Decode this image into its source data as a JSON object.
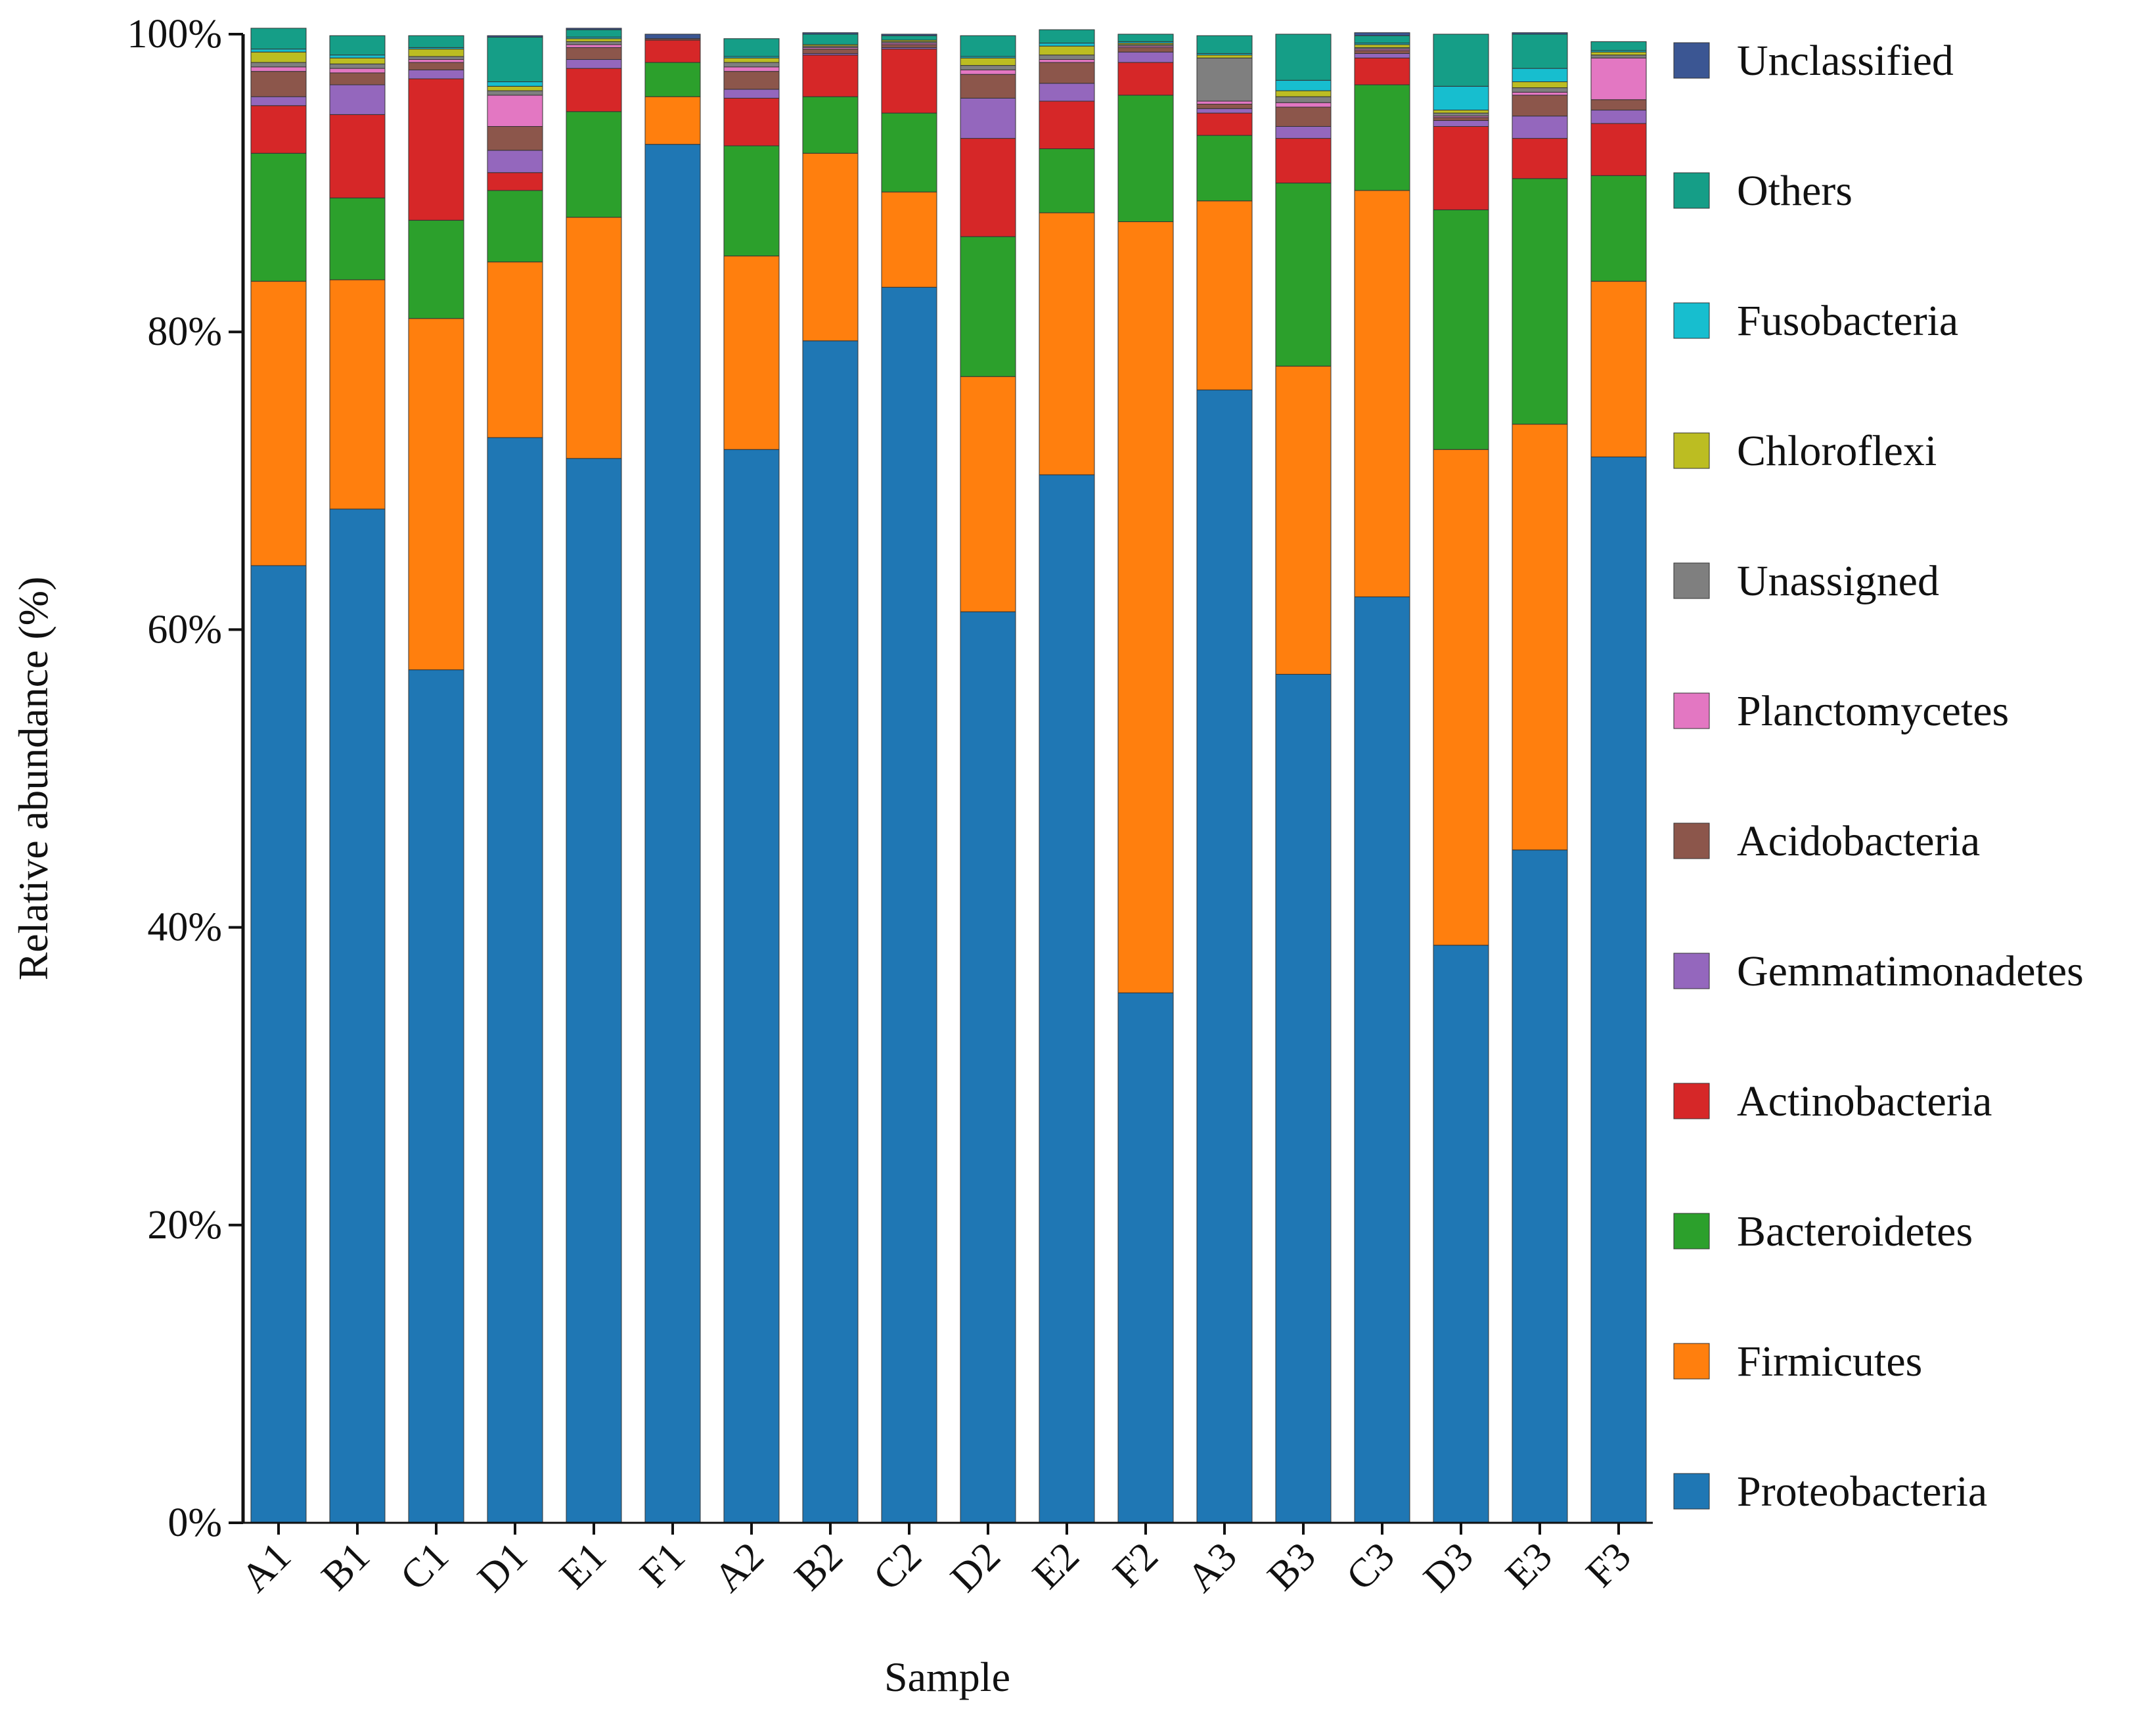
{
  "chart_data": {
    "type": "bar",
    "stacked": true,
    "title": "",
    "xlabel": "Sample",
    "ylabel": "Relative abundance (%)",
    "ylim": [
      0,
      100
    ],
    "yticks": [
      0,
      20,
      40,
      60,
      80,
      100
    ],
    "ytick_labels": [
      "0%",
      "20%",
      "40%",
      "60%",
      "80%",
      "100%"
    ],
    "legend_position": "right",
    "categories": [
      "A1",
      "B1",
      "C1",
      "D1",
      "E1",
      "F1",
      "A2",
      "B2",
      "C2",
      "D2",
      "E2",
      "F2",
      "A3",
      "B3",
      "C3",
      "D3",
      "E3",
      "F3"
    ],
    "series": [
      {
        "name": "Proteobacteria",
        "color": "#1f77b4",
        "values": [
          64.3,
          68.1,
          57.3,
          72.9,
          71.5,
          92.6,
          72.1,
          79.4,
          83.0,
          61.2,
          70.4,
          35.6,
          76.1,
          57.0,
          62.2,
          38.8,
          45.2,
          71.6
        ]
      },
      {
        "name": "Firmicutes",
        "color": "#ff7f0e",
        "values": [
          19.1,
          15.4,
          23.6,
          11.8,
          16.2,
          3.2,
          13.0,
          12.6,
          6.4,
          15.8,
          17.6,
          51.8,
          12.7,
          20.7,
          27.3,
          33.3,
          28.6,
          11.8
        ]
      },
      {
        "name": "Bacteroidetes",
        "color": "#2ca02c",
        "values": [
          8.6,
          5.5,
          6.6,
          4.8,
          7.1,
          2.3,
          7.4,
          3.8,
          5.3,
          9.4,
          4.3,
          8.5,
          4.4,
          12.3,
          7.1,
          16.1,
          16.5,
          7.1
        ]
      },
      {
        "name": "Actinobacteria",
        "color": "#d62728",
        "values": [
          3.2,
          5.6,
          9.5,
          1.2,
          2.9,
          1.5,
          3.2,
          2.8,
          4.3,
          6.6,
          3.2,
          2.2,
          1.5,
          3.0,
          1.8,
          5.6,
          2.7,
          3.5
        ]
      },
      {
        "name": "Gemmatimonadetes",
        "color": "#9467bd",
        "values": [
          0.6,
          2.0,
          0.6,
          1.5,
          0.6,
          0.0,
          0.6,
          0.1,
          0.1,
          2.7,
          1.2,
          0.7,
          0.3,
          0.8,
          0.3,
          0.4,
          1.5,
          0.9
        ]
      },
      {
        "name": "Acidobacteria",
        "color": "#8c564b",
        "values": [
          1.7,
          0.8,
          0.5,
          1.6,
          0.8,
          0.1,
          1.2,
          0.3,
          0.2,
          1.6,
          1.4,
          0.3,
          0.3,
          1.3,
          0.2,
          0.2,
          1.4,
          0.7
        ]
      },
      {
        "name": "Planctomycetes",
        "color": "#e377c2",
        "values": [
          0.3,
          0.3,
          0.2,
          2.1,
          0.2,
          0.0,
          0.3,
          0.1,
          0.1,
          0.3,
          0.2,
          0.1,
          0.2,
          0.3,
          0.1,
          0.1,
          0.2,
          2.8
        ]
      },
      {
        "name": "Unassigned",
        "color": "#7f7f7f",
        "values": [
          0.3,
          0.3,
          0.2,
          0.3,
          0.2,
          0.0,
          0.3,
          0.1,
          0.1,
          0.3,
          0.3,
          0.1,
          2.9,
          0.4,
          0.1,
          0.2,
          0.3,
          0.2
        ]
      },
      {
        "name": "Chloroflexi",
        "color": "#bcbd22",
        "values": [
          0.7,
          0.4,
          0.5,
          0.3,
          0.2,
          0.0,
          0.3,
          0.1,
          0.1,
          0.5,
          0.6,
          0.1,
          0.2,
          0.4,
          0.2,
          0.2,
          0.4,
          0.2
        ]
      },
      {
        "name": "Fusobacteria",
        "color": "#17becf",
        "values": [
          0.2,
          0.2,
          0.1,
          0.3,
          0.1,
          0.0,
          0.1,
          0.0,
          0.0,
          0.1,
          0.2,
          0.1,
          0.1,
          0.7,
          0.1,
          1.6,
          0.9,
          0.1
        ]
      },
      {
        "name": "Others",
        "color": "#159e87",
        "values": [
          1.4,
          1.3,
          0.8,
          3.0,
          0.5,
          0.0,
          1.2,
          0.7,
          0.3,
          1.4,
          0.9,
          0.5,
          1.2,
          3.1,
          0.5,
          3.5,
          2.3,
          0.6
        ]
      },
      {
        "name": "Unclassified",
        "color": "#3b5693",
        "values": [
          0.0,
          0.0,
          0.0,
          0.1,
          0.1,
          0.3,
          0.0,
          0.1,
          0.1,
          0.0,
          0.0,
          0.0,
          0.0,
          0.0,
          0.2,
          0.0,
          0.1,
          0.0
        ]
      }
    ]
  }
}
